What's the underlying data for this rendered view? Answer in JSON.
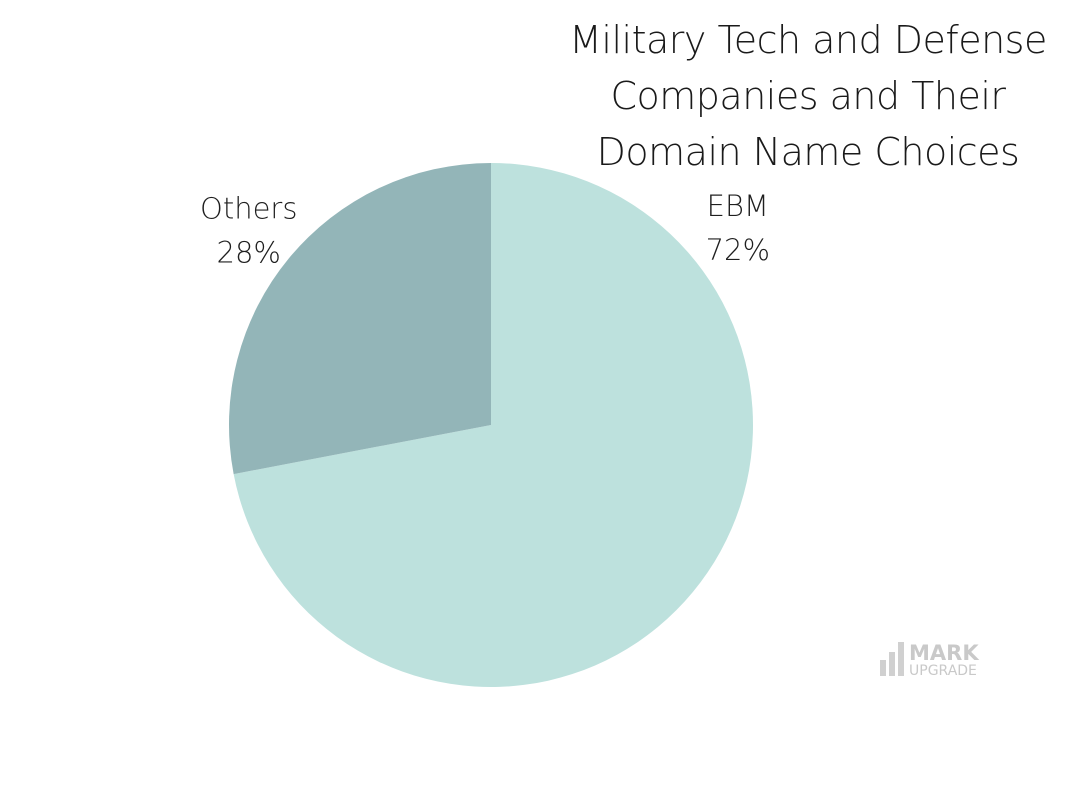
{
  "chart_data": {
    "type": "pie",
    "title_lines": [
      "Military Tech and Defense",
      "Companies and Their",
      "Domain Name Choices"
    ],
    "slices": [
      {
        "name": "EBM",
        "value": 72,
        "label_percent": "72%",
        "color": "#bde1dd"
      },
      {
        "name": "Others",
        "value": 28,
        "label_percent": "28%",
        "color": "#93b5b8"
      }
    ],
    "start_angle_deg": 0,
    "direction": "clockwise"
  },
  "watermark": {
    "line1": "MARK",
    "line2": "UPGRADE"
  }
}
